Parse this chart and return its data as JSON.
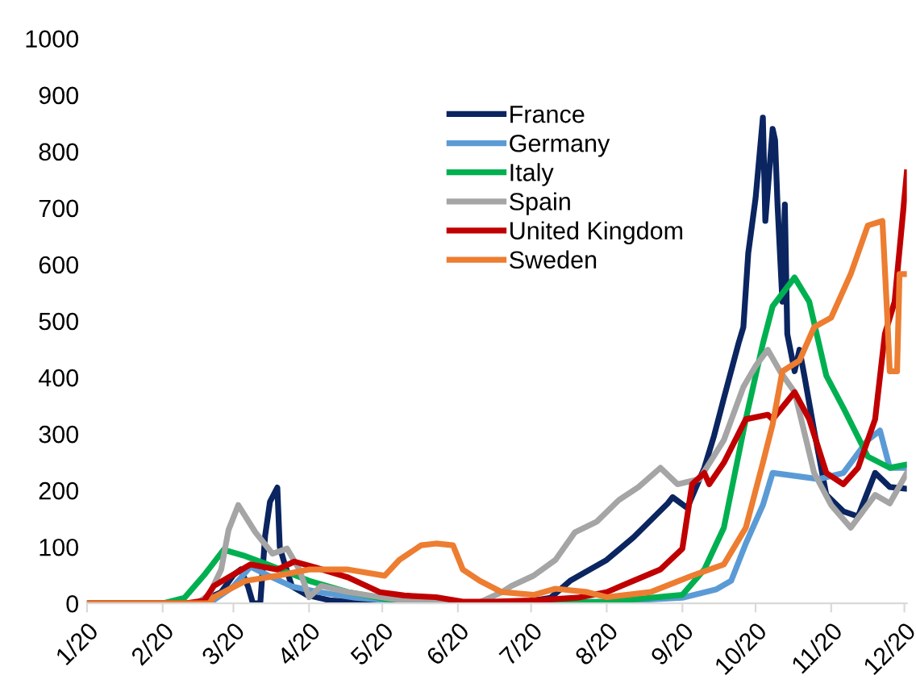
{
  "chart_data": {
    "type": "line",
    "legend": "top",
    "grid": false,
    "line_style": "solid",
    "marker": "none",
    "xlim": [
      "2020-01-01",
      "2020-12-02"
    ],
    "xticks": [
      {
        "value": "2020-01-01",
        "label": "1/20"
      },
      {
        "value": "2020-02-01",
        "label": "2/20"
      },
      {
        "value": "2020-03-01",
        "label": "3/20"
      },
      {
        "value": "2020-04-01",
        "label": "4/20"
      },
      {
        "value": "2020-05-01",
        "label": "5/20"
      },
      {
        "value": "2020-06-01",
        "label": "6/20"
      },
      {
        "value": "2020-07-01",
        "label": "7/20"
      },
      {
        "value": "2020-08-01",
        "label": "8/20"
      },
      {
        "value": "2020-09-01",
        "label": "9/20"
      },
      {
        "value": "2020-10-01",
        "label": "10/20"
      },
      {
        "value": "2020-11-01",
        "label": "11/20"
      },
      {
        "value": "2020-12-01",
        "label": "12/20"
      }
    ],
    "ylim": [
      0,
      1000
    ],
    "yticks": [
      0,
      100,
      200,
      300,
      400,
      500,
      600,
      700,
      800,
      900,
      1000
    ],
    "series": [
      {
        "name": "France",
        "color": "#0b2561",
        "x": [
          "2020-01-01",
          "2020-02-15",
          "2020-02-25",
          "2020-03-01",
          "2020-03-04",
          "2020-03-07",
          "2020-03-09",
          "2020-03-12",
          "2020-03-14",
          "2020-03-16",
          "2020-03-19",
          "2020-03-20",
          "2020-03-22",
          "2020-03-25",
          "2020-03-31",
          "2020-04-10",
          "2020-04-30",
          "2020-06-29",
          "2020-07-09",
          "2020-07-17",
          "2020-08-01",
          "2020-08-12",
          "2020-08-26",
          "2020-08-28",
          "2020-09-03",
          "2020-09-10",
          "2020-09-14",
          "2020-09-18",
          "2020-09-24",
          "2020-09-26",
          "2020-09-28",
          "2020-10-01",
          "2020-10-04",
          "2020-10-05",
          "2020-10-08",
          "2020-10-09",
          "2020-10-10",
          "2020-10-12",
          "2020-10-13",
          "2020-10-14",
          "2020-10-17",
          "2020-10-19",
          "2020-10-21",
          "2020-10-25",
          "2020-10-30",
          "2020-11-06",
          "2020-11-12",
          "2020-11-19",
          "2020-11-25",
          "2020-12-02"
        ],
        "values": [
          0,
          0,
          20,
          50,
          60,
          30,
          0,
          0,
          120,
          180,
          205,
          100,
          70,
          30,
          15,
          5,
          0,
          3,
          10,
          40,
          77,
          117,
          177,
          188,
          169,
          240,
          297,
          363,
          460,
          489,
          620,
          717,
          860,
          677,
          840,
          820,
          706,
          534,
          706,
          477,
          411,
          449,
          403,
          306,
          192,
          163,
          154,
          231,
          206,
          203
        ]
      },
      {
        "name": "Germany",
        "color": "#5b9bd5",
        "x": [
          "2020-01-01",
          "2020-02-20",
          "2020-03-01",
          "2020-03-08",
          "2020-03-15",
          "2020-03-25",
          "2020-04-05",
          "2020-04-20",
          "2020-05-10",
          "2020-06-01",
          "2020-08-01",
          "2020-09-01",
          "2020-09-15",
          "2020-09-21",
          "2020-09-27",
          "2020-10-04",
          "2020-10-08",
          "2020-10-27",
          "2020-11-06",
          "2020-11-16",
          "2020-11-21",
          "2020-11-25",
          "2020-12-02"
        ],
        "values": [
          0,
          0,
          30,
          65,
          50,
          30,
          20,
          10,
          3,
          1,
          3,
          10,
          25,
          40,
          106,
          174,
          231,
          220,
          231,
          289,
          306,
          240,
          240
        ]
      },
      {
        "name": "Italy",
        "color": "#00b050",
        "x": [
          "2020-01-01",
          "2020-02-01",
          "2020-02-10",
          "2020-02-18",
          "2020-02-26",
          "2020-03-05",
          "2020-03-15",
          "2020-04-01",
          "2020-04-17",
          "2020-05-02",
          "2020-05-17",
          "2020-06-15",
          "2020-08-01",
          "2020-09-01",
          "2020-09-10",
          "2020-09-18",
          "2020-09-27",
          "2020-10-04",
          "2020-10-08",
          "2020-10-17",
          "2020-10-23",
          "2020-10-30",
          "2020-11-06",
          "2020-11-16",
          "2020-11-25",
          "2020-12-02"
        ],
        "values": [
          0,
          0,
          10,
          50,
          95,
          85,
          69,
          40,
          20,
          8,
          2,
          0,
          3,
          15,
          60,
          134,
          326,
          460,
          526,
          577,
          534,
          403,
          346,
          260,
          240,
          246
        ]
      },
      {
        "name": "Spain",
        "color": "#a5a5a5",
        "x": [
          "2020-01-01",
          "2020-02-15",
          "2020-02-20",
          "2020-02-25",
          "2020-02-28",
          "2020-03-03",
          "2020-03-10",
          "2020-03-17",
          "2020-03-23",
          "2020-03-28",
          "2020-04-01",
          "2020-04-06",
          "2020-04-17",
          "2020-05-02",
          "2020-05-10",
          "2020-05-20",
          "2020-06-10",
          "2020-06-19",
          "2020-06-23",
          "2020-07-02",
          "2020-07-11",
          "2020-07-19",
          "2020-07-28",
          "2020-08-06",
          "2020-08-14",
          "2020-08-23",
          "2020-08-30",
          "2020-09-08",
          "2020-09-18",
          "2020-09-26",
          "2020-10-01",
          "2020-10-06",
          "2020-10-11",
          "2020-10-17",
          "2020-10-25",
          "2020-11-01",
          "2020-11-09",
          "2020-11-19",
          "2020-11-25",
          "2020-12-02"
        ],
        "values": [
          0,
          0,
          15,
          60,
          130,
          174,
          126,
          88,
          97,
          60,
          11,
          31,
          20,
          10,
          5,
          3,
          2,
          20,
          31,
          49,
          77,
          126,
          145,
          183,
          206,
          240,
          211,
          220,
          289,
          383,
          420,
          449,
          411,
          374,
          231,
          174,
          134,
          192,
          177,
          231
        ]
      },
      {
        "name": "United Kingdom",
        "color": "#c00000",
        "x": [
          "2020-01-01",
          "2020-02-10",
          "2020-02-18",
          "2020-02-22",
          "2020-03-08",
          "2020-03-19",
          "2020-03-26",
          "2020-04-04",
          "2020-04-17",
          "2020-04-30",
          "2020-05-10",
          "2020-05-23",
          "2020-06-03",
          "2020-06-15",
          "2020-07-01",
          "2020-07-20",
          "2020-08-01",
          "2020-08-12",
          "2020-08-23",
          "2020-09-01",
          "2020-09-05",
          "2020-09-10",
          "2020-09-12",
          "2020-09-18",
          "2020-09-27",
          "2020-10-06",
          "2020-10-08",
          "2020-10-17",
          "2020-10-23",
          "2020-10-30",
          "2020-11-06",
          "2020-11-12",
          "2020-11-19",
          "2020-11-23",
          "2020-11-27",
          "2020-12-02"
        ],
        "values": [
          0,
          0,
          5,
          31,
          69,
          60,
          74,
          63,
          46,
          20,
          14,
          11,
          3,
          3,
          5,
          10,
          20,
          40,
          60,
          97,
          211,
          231,
          211,
          249,
          326,
          334,
          326,
          374,
          326,
          231,
          211,
          240,
          326,
          477,
          534,
          763
        ]
      },
      {
        "name": "Sweden",
        "color": "#ed7d31",
        "x": [
          "2020-01-01",
          "2020-02-20",
          "2020-02-22",
          "2020-03-06",
          "2020-03-19",
          "2020-04-01",
          "2020-04-17",
          "2020-05-02",
          "2020-05-08",
          "2020-05-17",
          "2020-05-23",
          "2020-05-30",
          "2020-06-03",
          "2020-06-10",
          "2020-06-19",
          "2020-07-02",
          "2020-07-11",
          "2020-07-24",
          "2020-08-01",
          "2020-08-19",
          "2020-09-05",
          "2020-09-18",
          "2020-09-27",
          "2020-10-04",
          "2020-10-08",
          "2020-10-12",
          "2020-10-19",
          "2020-10-25",
          "2020-11-01",
          "2020-11-09",
          "2020-11-16",
          "2020-11-22",
          "2020-11-24",
          "2020-11-25",
          "2020-11-28",
          "2020-11-29",
          "2020-12-02"
        ],
        "values": [
          0,
          0,
          11,
          40,
          49,
          60,
          60,
          49,
          77,
          103,
          106,
          103,
          60,
          40,
          20,
          15,
          26,
          20,
          11,
          20,
          49,
          69,
          134,
          249,
          317,
          411,
          430,
          489,
          506,
          583,
          669,
          677,
          506,
          411,
          411,
          583,
          583
        ]
      }
    ]
  }
}
